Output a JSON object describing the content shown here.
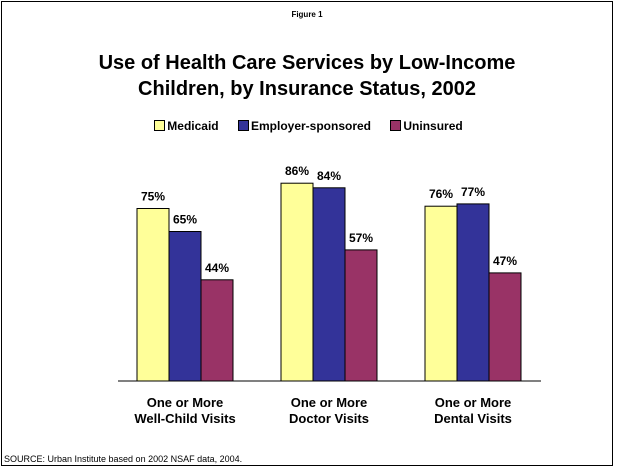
{
  "figure_label": "Figure 1",
  "title_line1": "Use of Health Care Services by Low-Income",
  "title_line2": "Children, by Insurance Status, 2002",
  "source": "SOURCE: Urban Institute based on 2002 NSAF data, 2004.",
  "colors": {
    "medicaid": "#ffff99",
    "employer": "#333399",
    "uninsured": "#993366"
  },
  "chart_data": {
    "type": "bar",
    "title": "Use of Health Care Services by Low-Income Children, by Insurance Status, 2002",
    "categories": [
      [
        "One or More",
        "Well-Child Visits"
      ],
      [
        "One or More",
        "Doctor Visits"
      ],
      [
        "One or More",
        "Dental Visits"
      ]
    ],
    "series": [
      {
        "name": "Medicaid",
        "values": [
          75,
          86,
          76
        ],
        "labels": [
          "75%",
          "86%",
          "76%"
        ],
        "color": "#ffff99"
      },
      {
        "name": "Employer-sponsored",
        "values": [
          65,
          84,
          77
        ],
        "labels": [
          "65%",
          "84%",
          "77%"
        ],
        "color": "#333399"
      },
      {
        "name": "Uninsured",
        "values": [
          44,
          57,
          47
        ],
        "labels": [
          "44%",
          "57%",
          "47%"
        ],
        "color": "#993366"
      }
    ],
    "ylim": [
      0,
      100
    ],
    "grid": false,
    "legend": "top"
  }
}
